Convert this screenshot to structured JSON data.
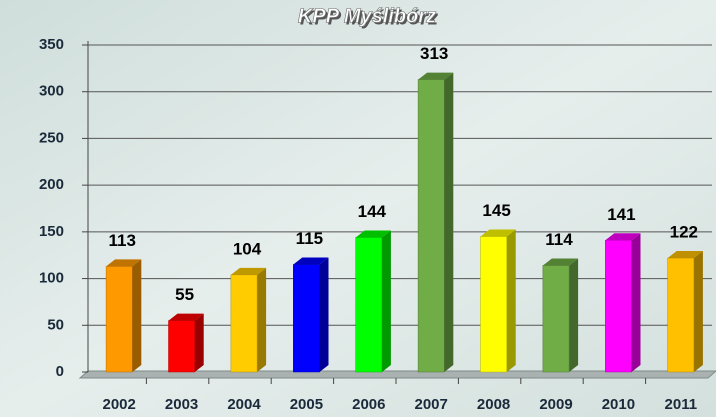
{
  "chart_data": {
    "type": "bar3d",
    "title": "KPP Myślibórz",
    "categories": [
      "2002",
      "2003",
      "2004",
      "2005",
      "2006",
      "2007",
      "2008",
      "2009",
      "2010",
      "2011"
    ],
    "values": [
      113,
      55,
      104,
      115,
      144,
      313,
      145,
      114,
      141,
      122
    ],
    "colors": [
      "#ff9900",
      "#ff0000",
      "#ffcc00",
      "#0000ff",
      "#00ff00",
      "#70ad47",
      "#ffff00",
      "#70ad47",
      "#ff00ff",
      "#ffc000"
    ],
    "ylim": [
      0,
      350
    ],
    "yticks": [
      0,
      50,
      100,
      150,
      200,
      250,
      300,
      350
    ],
    "grid": true
  }
}
